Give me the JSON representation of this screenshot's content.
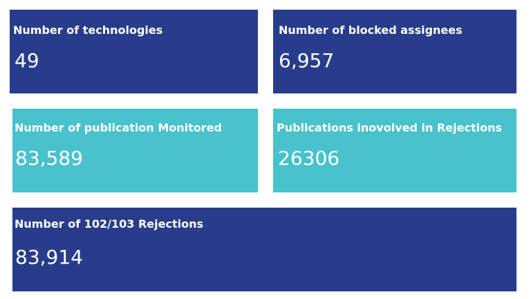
{
  "colors": {
    "dark_card": "#273d8c",
    "light_card": "#48c2cc",
    "text": "#ffffff"
  },
  "cards": {
    "technologies": {
      "label": "Number of technologies",
      "value": "49"
    },
    "blocked_assignees": {
      "label": "Number of blocked assignees",
      "value": "6,957"
    },
    "publications_monitored": {
      "label": "Number of publication Monitored",
      "value": "83,589"
    },
    "publications_involved": {
      "label": "Publications inovolved in Rejections",
      "value": "26306"
    },
    "rejections": {
      "label": "Number of 102/103 Rejections",
      "value": "83,914"
    }
  }
}
